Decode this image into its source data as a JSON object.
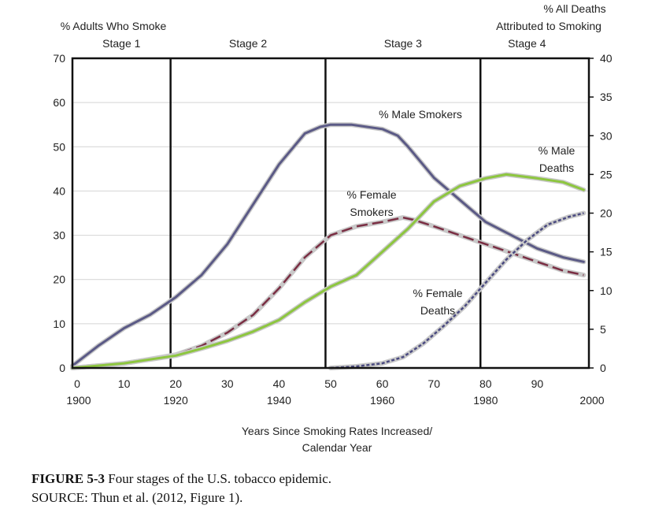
{
  "chart_data": {
    "type": "line",
    "title": "",
    "left_axis_title": [
      "% Adults Who Smoke"
    ],
    "right_axis_title": [
      "% All Deaths",
      "Attributed to Smoking"
    ],
    "xlabel": [
      "Years Since Smoking Rates Increased/",
      "Calendar Year"
    ],
    "x_range": [
      0,
      100
    ],
    "ylim_left": [
      0,
      70
    ],
    "ylim_right": [
      0,
      40
    ],
    "x_ticks": [
      0,
      10,
      20,
      30,
      40,
      50,
      60,
      70,
      80,
      90
    ],
    "x_tick_labels": [
      "0",
      "10",
      "20",
      "30",
      "40",
      "50",
      "60",
      "70",
      "80",
      "90"
    ],
    "calendar_ticks": [
      {
        "x": 0,
        "label": "1900"
      },
      {
        "x": 20,
        "label": "1920"
      },
      {
        "x": 40,
        "label": "1940"
      },
      {
        "x": 60,
        "label": "1960"
      },
      {
        "x": 80,
        "label": "1980"
      },
      {
        "x": 100,
        "label": "2000"
      }
    ],
    "y_left_ticks": [
      0,
      10,
      20,
      30,
      40,
      50,
      60,
      70
    ],
    "y_right_ticks": [
      0,
      5,
      10,
      15,
      20,
      25,
      30,
      35,
      40
    ],
    "stages": [
      {
        "label": "Stage 1",
        "x_start": 0,
        "x_end": 19
      },
      {
        "label": "Stage 2",
        "x_start": 19,
        "x_end": 49
      },
      {
        "label": "Stage 3",
        "x_start": 49,
        "x_end": 79
      },
      {
        "label": "Stage 4",
        "x_start": 79,
        "x_end": 97
      }
    ],
    "series": [
      {
        "name": "% Male Smokers",
        "label_lines": [
          "% Male Smokers"
        ],
        "axis": "left",
        "style": "solid",
        "color": "#5b5a86",
        "x": [
          0,
          5,
          10,
          15,
          20,
          25,
          30,
          35,
          40,
          45,
          48,
          50,
          54,
          60,
          63,
          65,
          70,
          75,
          80,
          85,
          90,
          95,
          99
        ],
        "y": [
          0.5,
          5,
          9,
          12,
          16,
          21,
          28,
          37,
          46,
          53,
          54.5,
          55,
          55,
          54,
          52.5,
          50,
          43,
          38,
          33,
          30,
          27,
          25,
          24
        ]
      },
      {
        "name": "% Female Smokers",
        "label_lines": [
          "% Female",
          "Smokers"
        ],
        "axis": "left",
        "style": "dashed",
        "color": "#7a2e43",
        "x": [
          0,
          10,
          20,
          25,
          30,
          35,
          40,
          45,
          48,
          50,
          55,
          60,
          64,
          66,
          70,
          75,
          80,
          85,
          90,
          95,
          99
        ],
        "y": [
          0,
          1,
          3,
          5,
          8,
          12,
          18,
          25,
          28,
          30,
          32,
          33,
          34,
          33.5,
          32,
          30,
          28,
          26,
          24,
          22,
          21
        ]
      },
      {
        "name": "% Male Deaths",
        "label_lines": [
          "% Male",
          "Deaths"
        ],
        "axis": "right",
        "style": "solid",
        "color": "#8dc63f",
        "x": [
          0,
          10,
          20,
          25,
          30,
          35,
          40,
          45,
          50,
          55,
          60,
          65,
          70,
          75,
          80,
          84,
          90,
          95,
          99
        ],
        "y": [
          0,
          0.6,
          1.6,
          2.5,
          3.5,
          4.7,
          6.2,
          8.5,
          10.5,
          12,
          15,
          18,
          21.5,
          23.5,
          24.5,
          25,
          24.5,
          24,
          23
        ]
      },
      {
        "name": "% Female Deaths",
        "label_lines": [
          "% Female",
          "Deaths"
        ],
        "axis": "right",
        "style": "dashed",
        "color": "#4a4a80",
        "x": [
          50,
          55,
          60,
          64,
          68,
          72,
          76,
          80,
          84,
          88,
          92,
          96,
          99
        ],
        "y": [
          0,
          0.2,
          0.6,
          1.4,
          3.2,
          5.5,
          8,
          11,
          14,
          16.5,
          18.5,
          19.5,
          20
        ]
      }
    ],
    "annotations": [
      "% Male Smokers",
      "% Female Smokers",
      "% Male Deaths",
      "% Female Deaths"
    ]
  },
  "caption": {
    "figure_label": "FIGURE 5-3",
    "figure_text": "Four stages of the U.S. tobacco epidemic.",
    "source_line": "SOURCE: Thun et al. (2012, Figure 1)."
  }
}
